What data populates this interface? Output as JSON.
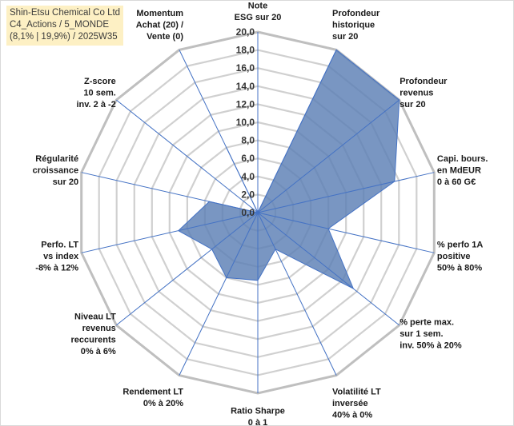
{
  "title_lines": [
    "Shin-Etsu Chemical Co Ltd",
    "C4_Actions / 5_MONDE",
    "(8,1% | 19,9%) / 2025W35"
  ],
  "chart_data": {
    "type": "radar",
    "rlim": [
      0,
      20
    ],
    "ticks": [
      "0,0",
      "2,0",
      "4,0",
      "6,0",
      "8,0",
      "10,0",
      "12,0",
      "14,0",
      "16,0",
      "18,0",
      "20,0"
    ],
    "grid": true,
    "fill_color": "#5b7fb5",
    "line_color": "#4472c4",
    "categories": [
      {
        "label": [
          "Note",
          "ESG sur 20"
        ],
        "value": 0
      },
      {
        "label": [
          "Profondeur",
          "historique",
          "sur 20"
        ],
        "value": 20
      },
      {
        "label": [
          "Profondeur",
          "revenus",
          "sur 20"
        ],
        "value": 20
      },
      {
        "label": [
          "Capi. bours.",
          "en MdEUR",
          "0 à 60 G€"
        ],
        "value": 15.5
      },
      {
        "label": [
          "% perfo 1A",
          "positive",
          "50% à 80%"
        ],
        "value": 8
      },
      {
        "label": [
          "% perte max.",
          "sur 1 sem.",
          "inv. 50% à 20%"
        ],
        "value": 13.5
      },
      {
        "label": [
          "Volatilité LT",
          "inversée",
          "40% à 0%"
        ],
        "value": 4.5
      },
      {
        "label": [
          "Ratio Sharpe",
          "0 à 1"
        ],
        "value": 7.5
      },
      {
        "label": [
          "Rendement LT",
          "0% à 20%"
        ],
        "value": 8
      },
      {
        "label": [
          "Niveau LT",
          "revenus",
          "reccurents",
          "0% à 6%"
        ],
        "value": 6.5
      },
      {
        "label": [
          "Perfo. LT",
          "vs index",
          "-8% à 12%"
        ],
        "value": 9
      },
      {
        "label": [
          "Régularité",
          "croissance",
          "sur 20"
        ],
        "value": 5.5
      },
      {
        "label": [
          "Z-score",
          "10 sem.",
          "inv. 2 à -2"
        ],
        "value": 0
      },
      {
        "label": [
          "Momentum",
          "Achat (20) /",
          "Vente (0)"
        ],
        "value": 8
      }
    ]
  }
}
